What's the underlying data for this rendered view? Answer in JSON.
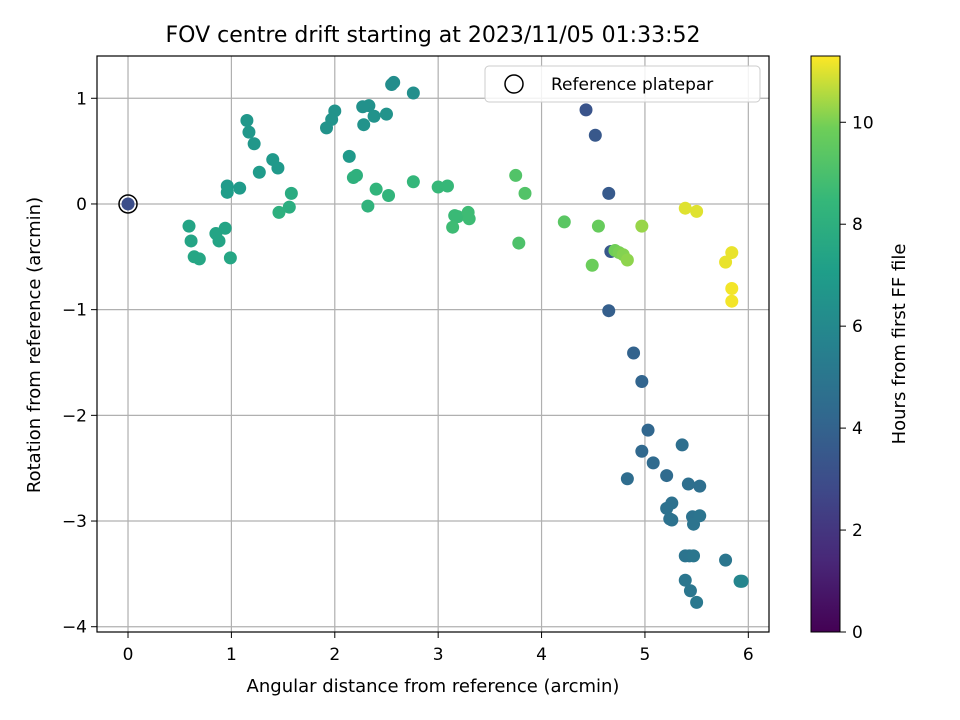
{
  "chart_data": {
    "type": "scatter",
    "title": "FOV centre drift starting at 2023/11/05 01:33:52",
    "xlabel": "Angular distance from reference (arcmin)",
    "ylabel": "Rotation from reference (arcmin)",
    "xlim": [
      -0.3,
      6.2
    ],
    "ylim": [
      -4.05,
      1.4
    ],
    "xticks": [
      0,
      1,
      2,
      3,
      4,
      5,
      6
    ],
    "yticks": [
      1,
      0,
      -1,
      -2,
      -3,
      -4
    ],
    "xtick_labels": [
      "0",
      "1",
      "2",
      "3",
      "4",
      "5",
      "6"
    ],
    "ytick_labels": [
      "1",
      "0",
      "−1",
      "−2",
      "−3",
      "−4"
    ],
    "grid": true,
    "legend": {
      "placement": "top-right",
      "entries": [
        "Reference platepar"
      ]
    },
    "colorbar": {
      "label": "Hours from first FF file",
      "colormap": "viridis",
      "range": [
        0,
        11.3
      ],
      "ticks": [
        0,
        2,
        4,
        6,
        8,
        10
      ],
      "tick_labels": [
        "0",
        "2",
        "4",
        "6",
        "8",
        "10"
      ]
    },
    "reference_point": {
      "x": 0,
      "y": 0
    },
    "series": [
      {
        "x": [
          0.0,
          4.43,
          4.52,
          4.65,
          4.67,
          4.65,
          4.89,
          4.97,
          5.03,
          4.97,
          5.08,
          5.21,
          4.83,
          5.36,
          5.42,
          5.53,
          5.26,
          5.21,
          5.24,
          5.26,
          5.46,
          5.48,
          5.47,
          5.53,
          5.39,
          5.43,
          5.47,
          5.39,
          5.44,
          5.5,
          5.78
        ],
        "y": [
          0.0,
          0.89,
          0.65,
          0.1,
          -0.45,
          -1.01,
          -1.41,
          -1.68,
          -2.14,
          -2.34,
          -2.45,
          -2.57,
          -2.6,
          -2.28,
          -2.65,
          -2.67,
          -2.83,
          -2.88,
          -2.98,
          -2.99,
          -2.96,
          -2.97,
          -3.03,
          -2.95,
          -3.33,
          -3.33,
          -3.33,
          -3.56,
          -3.66,
          -3.77,
          -3.37
        ],
        "hours": [
          3.0,
          3.3,
          3.5,
          3.6,
          3.5,
          3.8,
          4.0,
          4.1,
          4.2,
          4.3,
          4.4,
          4.4,
          4.5,
          4.6,
          4.6,
          4.6,
          4.7,
          4.7,
          4.7,
          4.8,
          4.8,
          4.8,
          4.9,
          4.9,
          4.9,
          4.9,
          5.0,
          5.0,
          5.0,
          5.1,
          5.0
        ]
      },
      {
        "x": [
          5.92,
          5.93,
          5.94,
          2.57,
          2.55,
          2.76,
          2.33,
          2.27,
          2.0,
          1.97,
          1.92,
          2.38,
          2.5,
          2.28,
          1.15,
          1.17,
          1.22,
          2.14,
          1.4,
          1.45,
          1.27,
          0.96,
          1.08,
          0.96,
          0.59,
          0.61,
          0.85,
          0.94,
          0.88,
          0.64,
          0.69,
          0.99
        ],
        "y": [
          -3.57,
          -3.57,
          -3.57,
          1.15,
          1.13,
          1.05,
          0.93,
          0.92,
          0.88,
          0.8,
          0.72,
          0.83,
          0.85,
          0.75,
          0.79,
          0.68,
          0.57,
          0.45,
          0.42,
          0.34,
          0.3,
          0.17,
          0.15,
          0.11,
          -0.21,
          -0.35,
          -0.28,
          -0.23,
          -0.35,
          -0.5,
          -0.52,
          -0.51
        ],
        "hours": [
          5.8,
          5.8,
          5.8,
          6.2,
          6.2,
          6.3,
          6.4,
          6.4,
          6.5,
          6.5,
          6.5,
          6.5,
          6.5,
          6.5,
          6.7,
          6.7,
          6.7,
          6.8,
          6.8,
          6.8,
          6.9,
          6.9,
          6.9,
          7.0,
          7.4,
          7.4,
          7.4,
          7.4,
          7.4,
          7.5,
          7.5,
          7.5
        ]
      },
      {
        "x": [
          1.58,
          1.56,
          1.46,
          2.21,
          2.18,
          2.32,
          2.4,
          2.52,
          2.76,
          3.0,
          3.09,
          3.16,
          3.19,
          3.29,
          3.3,
          3.14,
          3.75,
          3.84,
          3.78,
          4.22,
          4.55,
          4.49,
          4.71,
          4.75,
          4.79,
          4.83,
          4.97
        ],
        "y": [
          0.1,
          -0.03,
          -0.08,
          0.27,
          0.25,
          -0.02,
          0.14,
          0.08,
          0.21,
          0.16,
          0.17,
          -0.11,
          -0.12,
          -0.08,
          -0.14,
          -0.22,
          0.27,
          0.1,
          -0.37,
          -0.17,
          -0.21,
          -0.58,
          -0.44,
          -0.46,
          -0.48,
          -0.53,
          -0.21
        ],
        "hours": [
          7.8,
          7.9,
          8.0,
          8.1,
          8.1,
          8.2,
          8.3,
          8.3,
          8.4,
          8.5,
          8.5,
          8.6,
          8.6,
          8.7,
          8.7,
          8.7,
          9.2,
          9.2,
          9.1,
          9.4,
          9.7,
          9.8,
          9.9,
          10.0,
          10.1,
          10.2,
          10.3
        ]
      },
      {
        "x": [
          5.39,
          5.5,
          5.78,
          5.84,
          5.84,
          5.84
        ],
        "y": [
          -0.04,
          -0.07,
          -0.55,
          -0.46,
          -0.8,
          -0.92
        ],
        "hours": [
          11.0,
          11.0,
          11.1,
          11.1,
          11.2,
          11.2
        ]
      }
    ]
  }
}
